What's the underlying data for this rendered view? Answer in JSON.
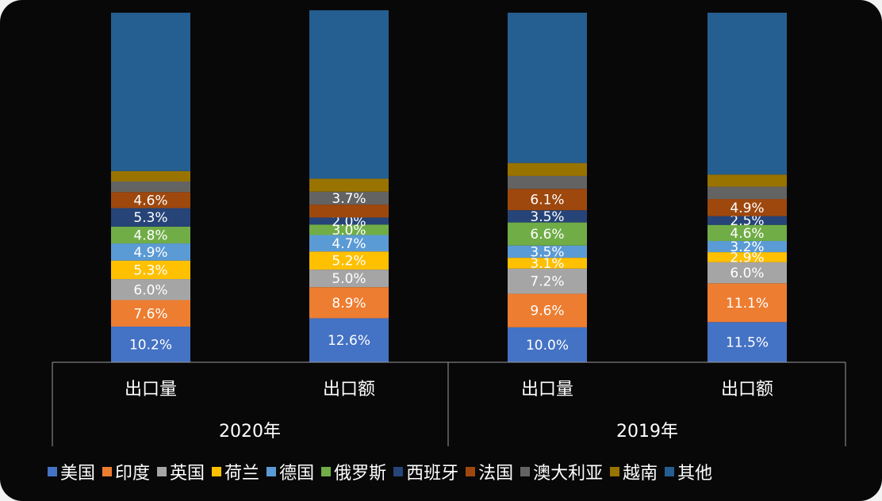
{
  "chart_data": {
    "type": "bar",
    "stacked": true,
    "percent": true,
    "categories": [
      "出口量",
      "出口额",
      "出口量",
      "出口额"
    ],
    "groups": [
      {
        "label": "2020年",
        "categories": [
          "出口量",
          "出口额"
        ]
      },
      {
        "label": "2019年",
        "categories": [
          "出口量",
          "出口额"
        ]
      }
    ],
    "series": [
      {
        "name": "美国",
        "color": "#4472c4",
        "values": [
          10.2,
          12.6,
          10.0,
          11.5
        ],
        "labels": [
          "10.2%",
          "12.6%",
          "10.0%",
          "11.5%"
        ]
      },
      {
        "name": "印度",
        "color": "#ed7d31",
        "values": [
          7.6,
          8.9,
          9.6,
          11.1
        ],
        "labels": [
          "7.6%",
          "8.9%",
          "9.6%",
          "11.1%"
        ]
      },
      {
        "name": "英国",
        "color": "#a5a5a5",
        "values": [
          6.0,
          5.0,
          7.2,
          6.0
        ],
        "labels": [
          "6.0%",
          "5.0%",
          "7.2%",
          "6.0%"
        ]
      },
      {
        "name": "荷兰",
        "color": "#ffc000",
        "values": [
          5.3,
          5.2,
          3.1,
          2.9
        ],
        "labels": [
          "5.3%",
          "5.2%",
          "3.1%",
          "2.9%"
        ]
      },
      {
        "name": "德国",
        "color": "#5b9bd5",
        "values": [
          4.9,
          4.7,
          3.5,
          3.2
        ],
        "labels": [
          "4.9%",
          "4.7%",
          "3.5%",
          "3.2%"
        ]
      },
      {
        "name": "俄罗斯",
        "color": "#70ad47",
        "values": [
          4.8,
          3.0,
          6.6,
          4.6
        ],
        "labels": [
          "4.8%",
          "3.0%",
          "6.6%",
          "4.6%"
        ]
      },
      {
        "name": "西班牙",
        "color": "#264478",
        "values": [
          5.3,
          2.0,
          3.5,
          2.5
        ],
        "labels": [
          "5.3%",
          "2.0%",
          "3.5%",
          "2.5%"
        ]
      },
      {
        "name": "法国",
        "color": "#9e480e",
        "values": [
          4.6,
          3.7,
          6.1,
          4.9
        ],
        "labels": [
          "4.6%",
          "",
          "6.1%",
          "4.9%"
        ]
      },
      {
        "name": "澳大利亚",
        "color": "#636363",
        "values": [
          3.0,
          3.7,
          3.7,
          3.5
        ],
        "labels": [
          "",
          "3.7%",
          "",
          ""
        ]
      },
      {
        "name": "越南",
        "color": "#997300",
        "values": [
          3.0,
          3.7,
          3.7,
          3.5
        ],
        "labels": [
          "",
          "",
          "",
          ""
        ]
      },
      {
        "name": "其他",
        "color": "#255e91",
        "values": [
          45.3,
          48.2,
          43.0,
          46.3
        ],
        "labels": [
          "",
          "",
          "",
          ""
        ]
      }
    ],
    "ylim": [
      0,
      100
    ],
    "title": "",
    "xlabel": "",
    "ylabel": "",
    "legend": {
      "position": "bottom"
    },
    "grid": false
  }
}
